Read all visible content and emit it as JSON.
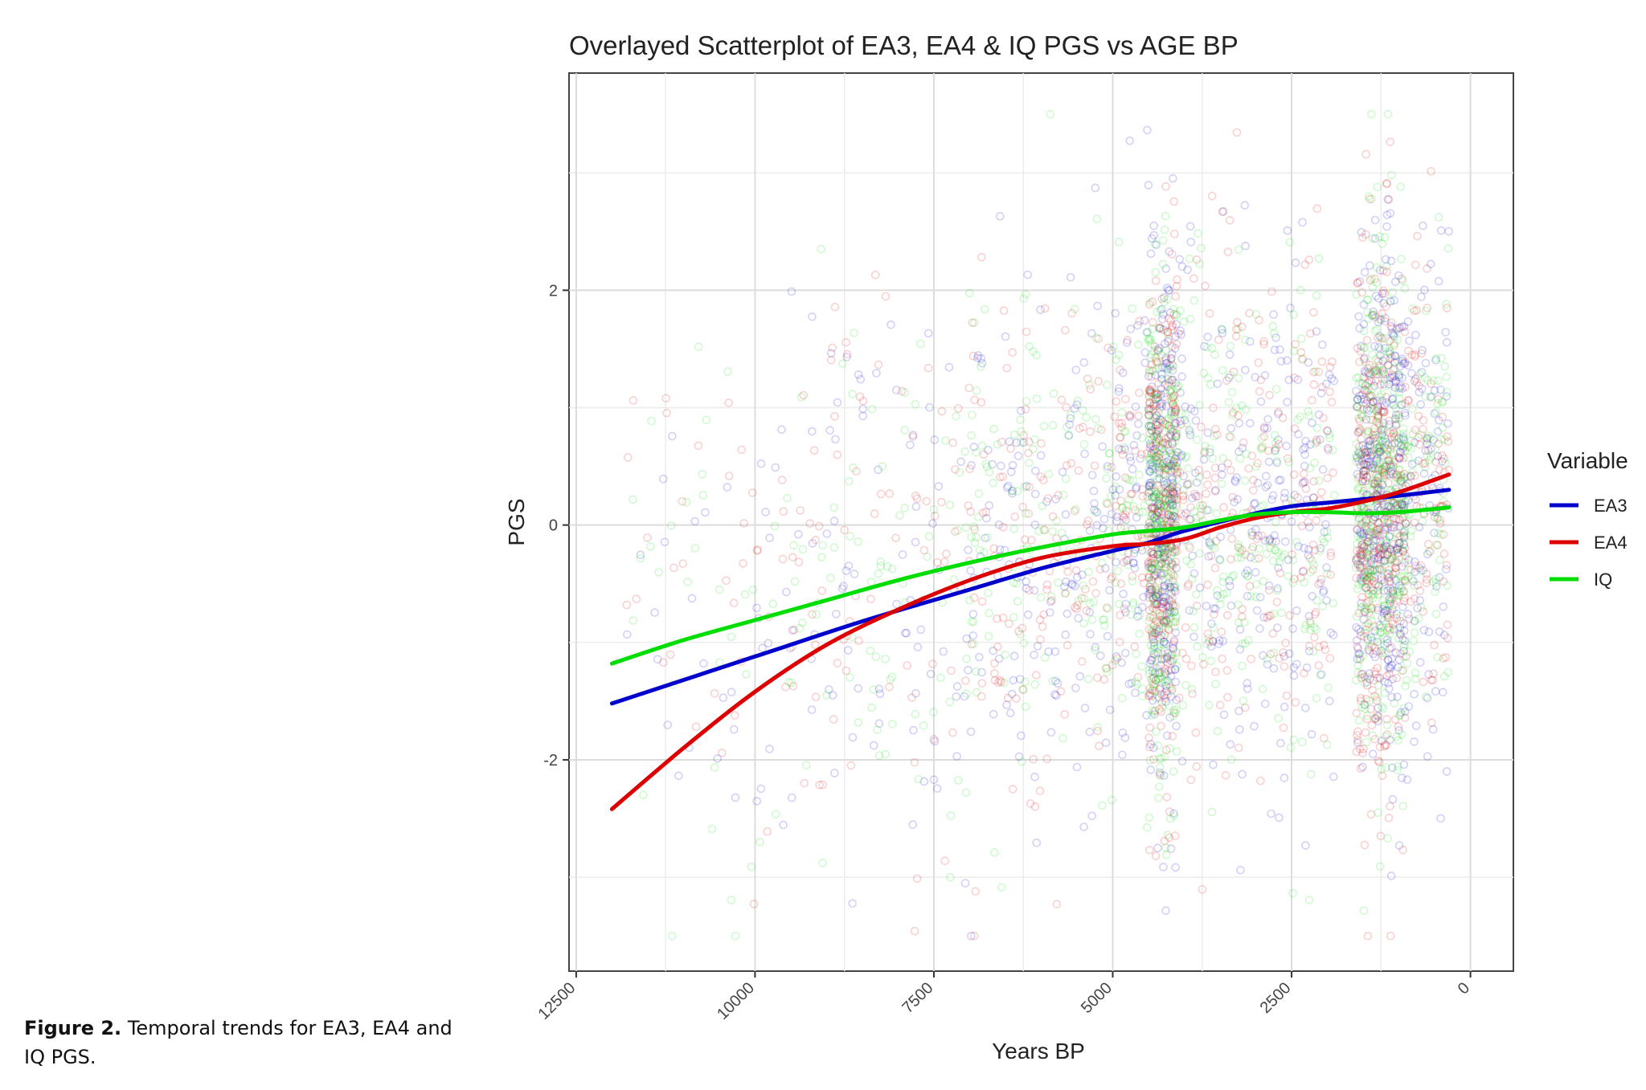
{
  "caption": {
    "label": "Figure 2.",
    "text": "Temporal trends for EA3, EA4 and IQ PGS."
  },
  "chart_data": {
    "type": "scatter",
    "title": "Overlayed Scatterplot of EA3, EA4 & IQ PGS vs AGE BP",
    "xlabel": "Years BP",
    "ylabel": "PGS",
    "x_reversed": true,
    "xlim": [
      12600,
      -600
    ],
    "ylim": [
      -3.8,
      3.85
    ],
    "x_ticks": [
      12500,
      10000,
      7500,
      5000,
      2500,
      0
    ],
    "x_tick_labels": [
      "12500",
      "10000",
      "7500",
      "5000",
      "2500",
      "0"
    ],
    "y_ticks": [
      -2,
      0,
      2
    ],
    "y_tick_labels": [
      "-2",
      "0",
      "2"
    ],
    "grid": true,
    "legend": {
      "title": "Variable",
      "position": "right"
    },
    "point_opacity": 0.18,
    "series": [
      {
        "name": "EA3",
        "color": "#0000cc",
        "trend": [
          [
            12000,
            -1.52
          ],
          [
            10000,
            -1.12
          ],
          [
            8500,
            -0.82
          ],
          [
            7000,
            -0.55
          ],
          [
            6000,
            -0.37
          ],
          [
            5000,
            -0.22
          ],
          [
            4500,
            -0.15
          ],
          [
            4000,
            -0.05
          ],
          [
            3000,
            0.1
          ],
          [
            2500,
            0.16
          ],
          [
            2000,
            0.19
          ],
          [
            1500,
            0.22
          ],
          [
            1000,
            0.25
          ],
          [
            300,
            0.3
          ]
        ]
      },
      {
        "name": "EA4",
        "color": "#dd0000",
        "trend": [
          [
            12000,
            -2.42
          ],
          [
            11000,
            -1.9
          ],
          [
            10000,
            -1.42
          ],
          [
            9000,
            -1.02
          ],
          [
            8000,
            -0.72
          ],
          [
            7000,
            -0.47
          ],
          [
            6000,
            -0.28
          ],
          [
            5000,
            -0.18
          ],
          [
            4500,
            -0.16
          ],
          [
            4000,
            -0.12
          ],
          [
            3500,
            -0.02
          ],
          [
            3000,
            0.06
          ],
          [
            2500,
            0.11
          ],
          [
            2000,
            0.14
          ],
          [
            1500,
            0.2
          ],
          [
            1000,
            0.28
          ],
          [
            300,
            0.43
          ]
        ]
      },
      {
        "name": "IQ",
        "color": "#00dd00",
        "trend": [
          [
            12000,
            -1.18
          ],
          [
            11000,
            -0.98
          ],
          [
            10000,
            -0.81
          ],
          [
            9000,
            -0.64
          ],
          [
            8000,
            -0.47
          ],
          [
            7000,
            -0.32
          ],
          [
            6000,
            -0.19
          ],
          [
            5000,
            -0.08
          ],
          [
            4500,
            -0.05
          ],
          [
            4000,
            -0.02
          ],
          [
            3500,
            0.04
          ],
          [
            3000,
            0.09
          ],
          [
            2500,
            0.11
          ],
          [
            2000,
            0.11
          ],
          [
            1500,
            0.1
          ],
          [
            1000,
            0.11
          ],
          [
            300,
            0.15
          ]
        ]
      }
    ],
    "point_clusters": [
      {
        "x": [
          11800,
          9500
        ],
        "count": 35,
        "y_center": -0.6,
        "y_sd": 1.1
      },
      {
        "x": [
          9500,
          7000
        ],
        "count": 80,
        "y_center": -0.45,
        "y_sd": 1.15
      },
      {
        "x": [
          7000,
          5100
        ],
        "count": 130,
        "y_center": -0.15,
        "y_sd": 1.05
      },
      {
        "x": [
          4500,
          4100
        ],
        "count": 260,
        "y_center": -0.1,
        "y_sd": 1.1
      },
      {
        "x": [
          5100,
          1900
        ],
        "count": 330,
        "y_center": 0.05,
        "y_sd": 1.05
      },
      {
        "x": [
          1600,
          900
        ],
        "count": 380,
        "y_center": 0.15,
        "y_sd": 1.1
      },
      {
        "x": [
          900,
          300
        ],
        "count": 90,
        "y_center": 0.25,
        "y_sd": 1.05
      }
    ]
  }
}
